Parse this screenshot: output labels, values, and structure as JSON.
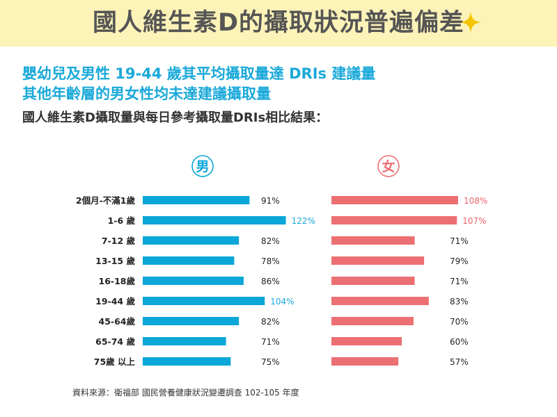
{
  "banner": {
    "title": "國人維生素D的攝取狀況普遍偏差",
    "accent_color": "#fdf3b8",
    "icon": "sparkle-icon"
  },
  "headline": {
    "line1": "嬰幼兒及男性 19-44 歲其平均攝取量達 DRIs 建議量",
    "line2": "其他年齡層的男女性均未達建議攝取量"
  },
  "subhead": "國人維生素D攝取量與每日參考攝取量DRIs相比結果：",
  "chart_data": {
    "type": "bar",
    "orientation": "horizontal",
    "categories": [
      "2個月-不滿1歲",
      "1-6 歲",
      "7-12 歲",
      "13-15 歲",
      "16-18歲",
      "19-44 歲",
      "45-64歲",
      "65-74 歲",
      "75歲 以上"
    ],
    "series": [
      {
        "name": "男",
        "values": [
          91,
          122,
          82,
          78,
          86,
          104,
          82,
          71,
          75
        ],
        "color": "#0aa7d8",
        "highlight_color": "#1aa9d9"
      },
      {
        "name": "女",
        "values": [
          108,
          107,
          71,
          79,
          71,
          83,
          70,
          60,
          57
        ],
        "color": "#ec6f73",
        "highlight_color": "#e8656a"
      }
    ],
    "value_suffix": "%",
    "highlight_threshold": 100,
    "xlim": [
      0,
      140
    ],
    "legend": "top"
  },
  "source": "資料來源：衛福部 國民營養健康狀況變遷調查 102-105 年度"
}
